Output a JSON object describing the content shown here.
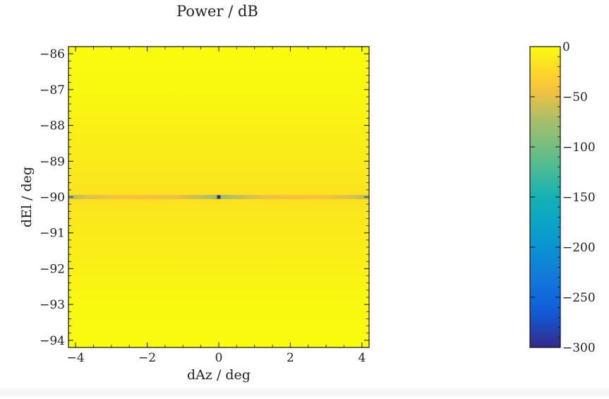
{
  "chart_data": {
    "type": "heatmap",
    "title": "Power / dB",
    "xlabel": "dAz / deg",
    "ylabel": "dEl / deg",
    "xlim": [
      -4.2,
      4.2
    ],
    "ylim": [
      -94.2,
      -85.8
    ],
    "xticks": [
      -4,
      -2,
      0,
      2,
      4
    ],
    "xtick_labels": [
      "−4",
      "−2",
      "0",
      "2",
      "4"
    ],
    "yticks": [
      -86,
      -87,
      -88,
      -89,
      -90,
      -91,
      -92,
      -93,
      -94
    ],
    "ytick_labels": [
      "−86",
      "−87",
      "−88",
      "−89",
      "−90",
      "−91",
      "−92",
      "−93",
      "−94"
    ],
    "colorbar": {
      "ticks": [
        0,
        -50,
        -100,
        -150,
        -200,
        -250,
        -300
      ],
      "tick_labels": [
        "0",
        "−50",
        "−100",
        "−150",
        "−200",
        "−250",
        "−300"
      ],
      "range": [
        -300,
        0
      ],
      "colormap": "parula"
    },
    "field": {
      "background_db": -5,
      "horizontal_dip_el": -90,
      "horizontal_dip_db": -40,
      "null_point": [
        0,
        -90
      ],
      "null_db": -300
    },
    "grid": false
  }
}
